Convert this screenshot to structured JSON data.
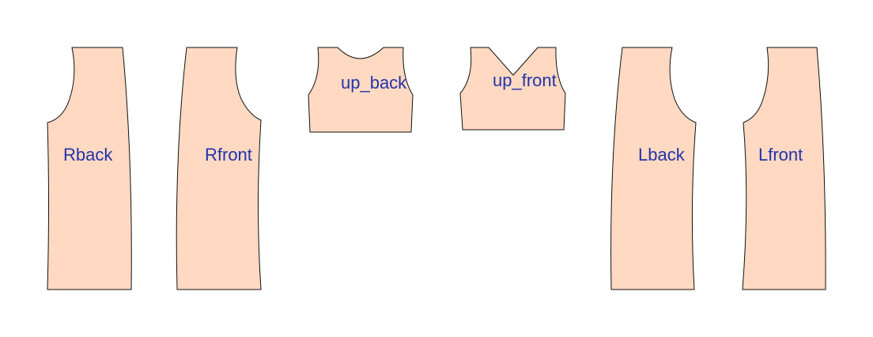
{
  "colors": {
    "piece_fill": "#FFD9C2",
    "outline": "#111111",
    "label": "#2233AA"
  },
  "pieces": [
    {
      "id": "rback",
      "label": "Rback"
    },
    {
      "id": "rfront",
      "label": "Rfront"
    },
    {
      "id": "up-back",
      "label": "up_back"
    },
    {
      "id": "up-front",
      "label": "up_front"
    },
    {
      "id": "lback",
      "label": "Lback"
    },
    {
      "id": "lfront",
      "label": "Lfront"
    }
  ]
}
